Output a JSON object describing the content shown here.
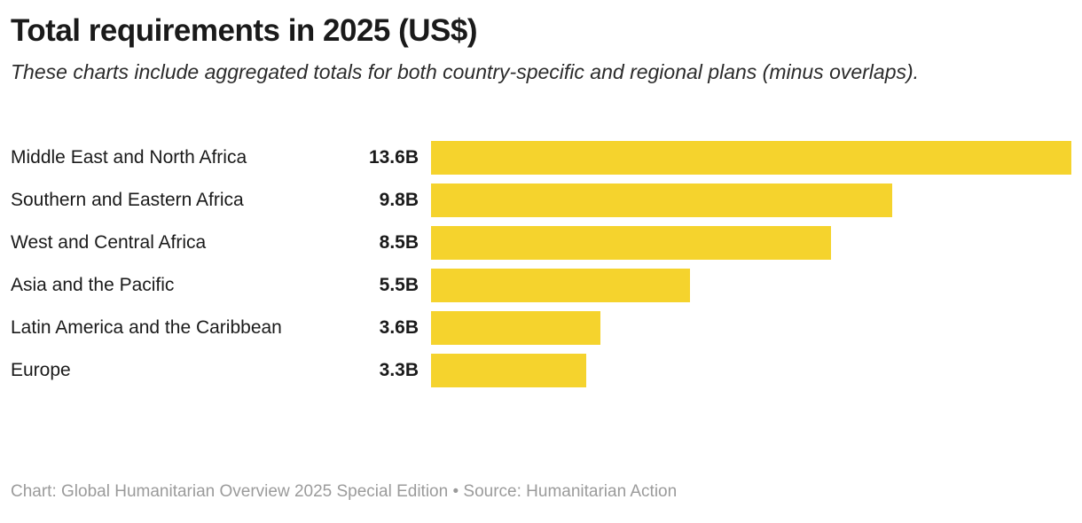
{
  "chart_data": {
    "type": "bar",
    "orientation": "horizontal",
    "title": "Total requirements in 2025 (US$)",
    "subtitle": "These charts include aggregated totals for both country-specific and regional plans (minus overlaps).",
    "categories": [
      "Middle East and North Africa",
      "Southern and Eastern Africa",
      "West and Central Africa",
      "Asia and the Pacific",
      "Latin America and the Caribbean",
      "Europe"
    ],
    "values": [
      13.6,
      9.8,
      8.5,
      5.5,
      3.6,
      3.3
    ],
    "value_labels": [
      "13.6B",
      "9.8B",
      "8.5B",
      "5.5B",
      "3.6B",
      "3.3B"
    ],
    "unit": "US$ billions",
    "xlim": [
      0,
      13.6
    ],
    "grid": false,
    "legend": "none",
    "bar_color": "#F5D32D"
  },
  "footer": "Chart: Global Humanitarian Overview 2025 Special Edition • Source: Humanitarian Action"
}
